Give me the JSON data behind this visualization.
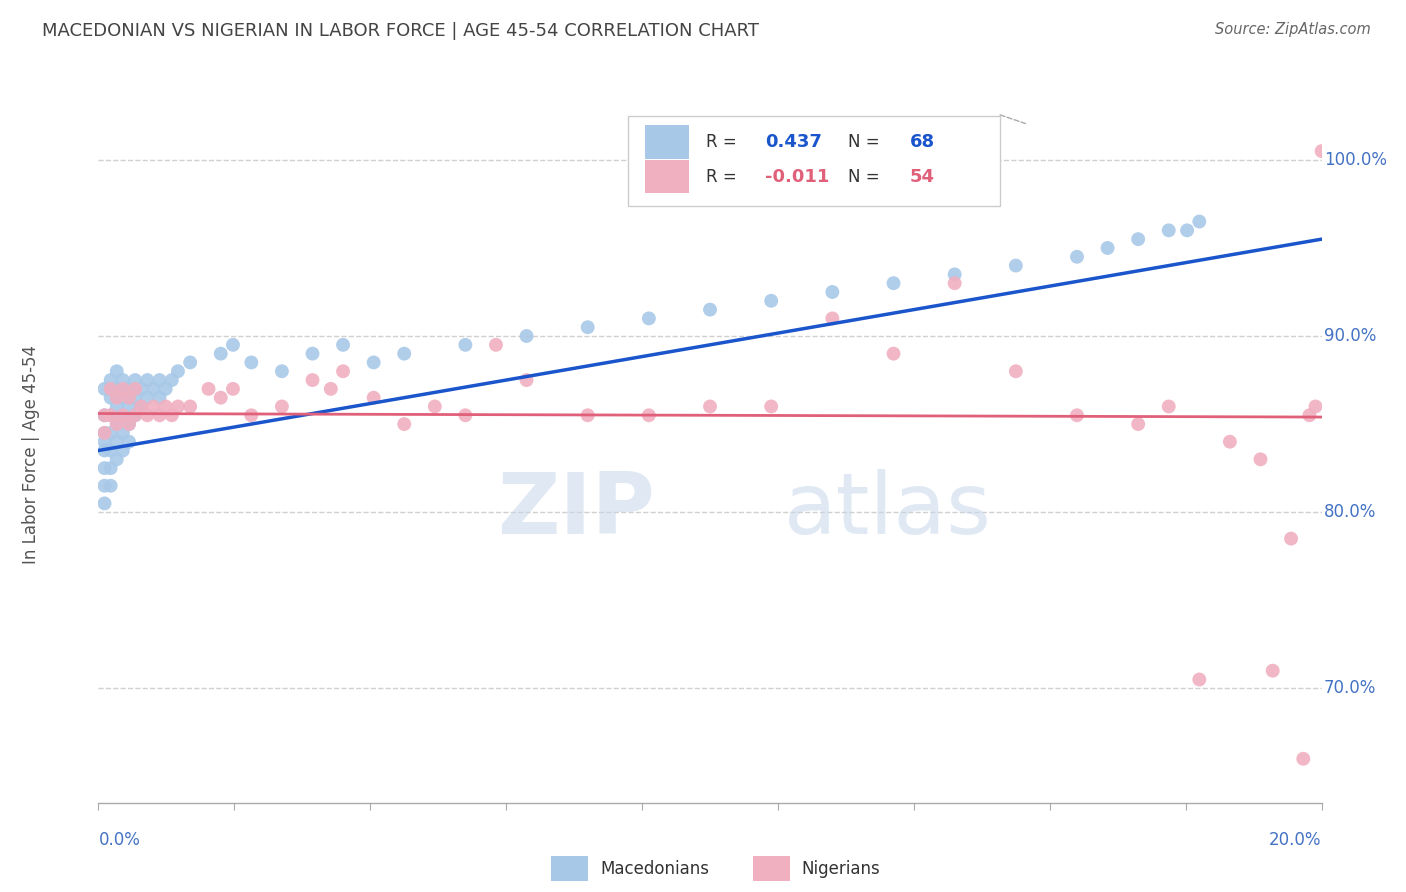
{
  "title": "MACEDONIAN VS NIGERIAN IN LABOR FORCE | AGE 45-54 CORRELATION CHART",
  "source": "Source: ZipAtlas.com",
  "ylabel": "In Labor Force | Age 45-54",
  "legend_macedonians": "Macedonians",
  "legend_nigerians": "Nigerians",
  "blue_R": "0.437",
  "blue_N": "68",
  "pink_R": "-0.011",
  "pink_N": "54",
  "blue_color": "#a8c8e8",
  "pink_color": "#f0b0c0",
  "blue_line_color": "#1a55cc",
  "pink_line_color": "#e0607a",
  "ytick_values": [
    0.7,
    0.8,
    0.9,
    1.0
  ],
  "xlim": [
    0.0,
    0.2
  ],
  "ylim": [
    0.635,
    1.03
  ],
  "macedonian_x": [
    0.001,
    0.001,
    0.001,
    0.001,
    0.001,
    0.001,
    0.001,
    0.001,
    0.002,
    0.002,
    0.002,
    0.002,
    0.002,
    0.002,
    0.002,
    0.003,
    0.003,
    0.003,
    0.003,
    0.003,
    0.003,
    0.004,
    0.004,
    0.004,
    0.004,
    0.004,
    0.005,
    0.005,
    0.005,
    0.005,
    0.006,
    0.006,
    0.006,
    0.007,
    0.007,
    0.008,
    0.008,
    0.009,
    0.01,
    0.01,
    0.011,
    0.012,
    0.013,
    0.015,
    0.02,
    0.022,
    0.025,
    0.03,
    0.035,
    0.04,
    0.045,
    0.05,
    0.06,
    0.07,
    0.08,
    0.09,
    0.1,
    0.11,
    0.12,
    0.13,
    0.14,
    0.15,
    0.16,
    0.165,
    0.17,
    0.175,
    0.178,
    0.18
  ],
  "macedonian_y": [
    0.87,
    0.855,
    0.845,
    0.84,
    0.835,
    0.825,
    0.815,
    0.805,
    0.875,
    0.865,
    0.855,
    0.845,
    0.835,
    0.825,
    0.815,
    0.88,
    0.87,
    0.86,
    0.85,
    0.84,
    0.83,
    0.875,
    0.865,
    0.855,
    0.845,
    0.835,
    0.87,
    0.86,
    0.85,
    0.84,
    0.875,
    0.865,
    0.855,
    0.87,
    0.86,
    0.875,
    0.865,
    0.87,
    0.875,
    0.865,
    0.87,
    0.875,
    0.88,
    0.885,
    0.89,
    0.895,
    0.885,
    0.88,
    0.89,
    0.895,
    0.885,
    0.89,
    0.895,
    0.9,
    0.905,
    0.91,
    0.915,
    0.92,
    0.925,
    0.93,
    0.935,
    0.94,
    0.945,
    0.95,
    0.955,
    0.96,
    0.96,
    0.965
  ],
  "nigerian_x": [
    0.001,
    0.001,
    0.002,
    0.002,
    0.003,
    0.003,
    0.004,
    0.004,
    0.005,
    0.005,
    0.006,
    0.006,
    0.007,
    0.008,
    0.009,
    0.01,
    0.011,
    0.012,
    0.013,
    0.015,
    0.018,
    0.02,
    0.022,
    0.025,
    0.03,
    0.035,
    0.038,
    0.04,
    0.045,
    0.05,
    0.055,
    0.06,
    0.065,
    0.07,
    0.08,
    0.09,
    0.1,
    0.11,
    0.12,
    0.13,
    0.14,
    0.15,
    0.16,
    0.17,
    0.175,
    0.18,
    0.185,
    0.19,
    0.192,
    0.195,
    0.197,
    0.198,
    0.199,
    0.2
  ],
  "nigerian_y": [
    0.855,
    0.845,
    0.87,
    0.855,
    0.865,
    0.85,
    0.87,
    0.855,
    0.865,
    0.85,
    0.87,
    0.855,
    0.86,
    0.855,
    0.86,
    0.855,
    0.86,
    0.855,
    0.86,
    0.86,
    0.87,
    0.865,
    0.87,
    0.855,
    0.86,
    0.875,
    0.87,
    0.88,
    0.865,
    0.85,
    0.86,
    0.855,
    0.895,
    0.875,
    0.855,
    0.855,
    0.86,
    0.86,
    0.91,
    0.89,
    0.93,
    0.88,
    0.855,
    0.85,
    0.86,
    0.705,
    0.84,
    0.83,
    0.71,
    0.785,
    0.66,
    0.855,
    0.86,
    1.005
  ],
  "watermark_zip": "ZIP",
  "watermark_atlas": "atlas",
  "background_color": "#ffffff",
  "grid_color": "#d0d0d0",
  "axis_label_color": "#4472c4",
  "title_color": "#444444"
}
